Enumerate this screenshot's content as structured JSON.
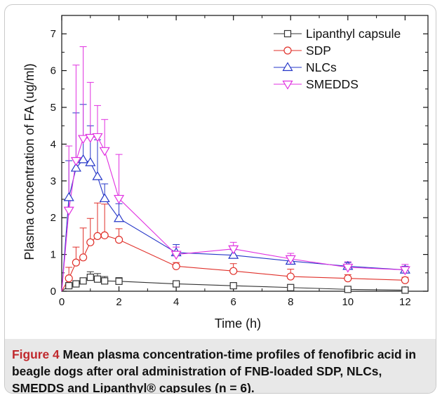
{
  "chart_data": {
    "type": "line",
    "title": "",
    "xlabel": "Time (h)",
    "ylabel": "Plasma concentration of FA (ug/ml)",
    "xlim": [
      0,
      12.8
    ],
    "ylim": [
      0,
      7.5
    ],
    "xticks": [
      0,
      2,
      4,
      6,
      8,
      10,
      12
    ],
    "yticks": [
      0,
      1,
      2,
      3,
      4,
      5,
      6,
      7
    ],
    "grid": false,
    "legend_position": "top-right",
    "error_bars": "upper",
    "series": [
      {
        "name": "Lipanthyl capsule",
        "color": "#333333",
        "marker": "square",
        "x": [
          0,
          0.25,
          0.5,
          0.75,
          1,
          1.25,
          1.5,
          2,
          4,
          6,
          8,
          10,
          12
        ],
        "y": [
          0,
          0.15,
          0.2,
          0.28,
          0.38,
          0.33,
          0.28,
          0.27,
          0.2,
          0.15,
          0.1,
          0.05,
          0.03
        ],
        "err": [
          0,
          0.05,
          0.06,
          0.08,
          0.15,
          0.15,
          0.12,
          0.1,
          0.06,
          0.05,
          0.04,
          0.03,
          0.02
        ]
      },
      {
        "name": "SDP",
        "color": "#e0302a",
        "marker": "circle",
        "x": [
          0,
          0.25,
          0.5,
          0.75,
          1,
          1.25,
          1.5,
          2,
          4,
          6,
          8,
          10,
          12
        ],
        "y": [
          0,
          0.35,
          0.78,
          0.92,
          1.33,
          1.5,
          1.52,
          1.4,
          0.68,
          0.55,
          0.4,
          0.35,
          0.3
        ],
        "err": [
          0,
          0.3,
          0.42,
          0.8,
          0.65,
          0.9,
          0.85,
          0.3,
          0.1,
          0.2,
          0.2,
          0.1,
          0.08
        ]
      },
      {
        "name": "NLCs",
        "color": "#2536c8",
        "marker": "triangle-up",
        "x": [
          0,
          0.25,
          0.5,
          0.75,
          1,
          1.25,
          1.5,
          2,
          4,
          6,
          8,
          10,
          12
        ],
        "y": [
          0,
          2.55,
          3.35,
          3.58,
          3.5,
          3.12,
          2.52,
          1.98,
          1.05,
          0.98,
          0.82,
          0.68,
          0.58
        ],
        "err": [
          0,
          1.0,
          1.5,
          1.5,
          1.0,
          1.0,
          0.4,
          0.4,
          0.22,
          0.15,
          0.12,
          0.1,
          0.1
        ]
      },
      {
        "name": "SMEDDS",
        "color": "#e030e0",
        "marker": "triangle-down",
        "x": [
          0,
          0.25,
          0.5,
          0.75,
          1,
          1.25,
          1.5,
          2,
          4,
          6,
          8,
          10,
          12
        ],
        "y": [
          0,
          2.2,
          3.55,
          4.15,
          4.18,
          4.2,
          3.82,
          2.52,
          1.0,
          1.15,
          0.88,
          0.65,
          0.58
        ],
        "err": [
          0,
          1.75,
          2.6,
          2.5,
          1.5,
          0.85,
          0.85,
          1.2,
          0.2,
          0.18,
          0.15,
          0.15,
          0.15
        ]
      }
    ]
  },
  "caption": {
    "label": "Figure 4",
    "text": "Mean plasma concentration-time profiles of fenofibric acid in beagle dogs after oral administration of FNB-loaded SDP, NLCs, SMEDDS and Lipanthyl® capsules (n = 6)."
  }
}
